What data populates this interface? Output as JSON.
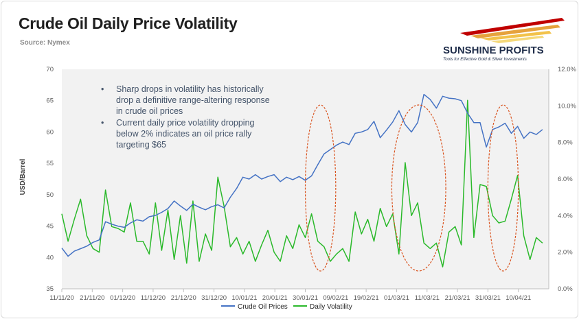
{
  "header": {
    "title": "Crude Oil Daily Price Volatility",
    "source": "Source: Nymex"
  },
  "logo": {
    "name": "SUNSHINE PROFITS",
    "tagline": "Tools for Effective Gold & Silver Investments"
  },
  "annotations": [
    [
      "Sharp drops in volatility has historically",
      "drop a definitive range-altering response",
      "in crude oil prices"
    ],
    [
      "Current daily price volatility dropping",
      "below 2% indicates an oil price rally",
      "targeting $65"
    ]
  ],
  "colors": {
    "price": "#4472c4",
    "volatility": "#2ab92a",
    "highlight_ellipse": "#d9531e",
    "plot_background": "#f2f2f2"
  },
  "chart_data": {
    "type": "line",
    "title": "Crude Oil Daily Price Volatility",
    "subtitle": "Source: Nymex",
    "ylabel_left": "USD/Barrel",
    "ylim_left": [
      35,
      70
    ],
    "yticks_left": [
      "35",
      "40",
      "45",
      "50",
      "55",
      "60",
      "65",
      "70"
    ],
    "ylim_right": [
      0,
      12
    ],
    "yticks_right": [
      "0.0%",
      "2.0%",
      "4.0%",
      "6.0%",
      "8.0%",
      "10.0%",
      "12.0%"
    ],
    "x_tick_labels": [
      "11/11/20",
      "21/11/20",
      "01/12/20",
      "11/12/20",
      "21/12/20",
      "31/12/20",
      "10/01/21",
      "20/01/21",
      "30/01/21",
      "09/02/21",
      "19/02/21",
      "01/03/21",
      "11/03/21",
      "21/03/21",
      "31/03/21",
      "10/04/21"
    ],
    "x_range_days": [
      0,
      156
    ],
    "legend": [
      "Crude Oil Prices",
      "Daily Volatility"
    ],
    "legend_position": "bottom",
    "grid": false,
    "series": [
      {
        "name": "Crude Oil Prices",
        "axis": "left",
        "x_days": [
          0,
          2,
          4,
          6,
          8,
          10,
          12,
          14,
          16,
          18,
          20,
          22,
          24,
          26,
          28,
          30,
          32,
          34,
          36,
          38,
          40,
          42,
          44,
          46,
          48,
          50,
          52,
          54,
          56,
          58,
          60,
          62,
          64,
          66,
          68,
          70,
          72,
          74,
          76,
          78,
          80,
          82,
          84,
          86,
          88,
          90,
          92,
          94,
          96,
          98,
          100,
          102,
          104,
          106,
          108,
          110,
          112,
          114,
          116,
          118,
          120,
          122,
          124,
          126,
          128,
          130,
          132,
          134,
          136,
          138,
          140,
          142,
          144,
          146,
          148,
          150,
          152,
          154
        ],
        "values": [
          41.5,
          40.2,
          41.0,
          41.4,
          41.8,
          42.4,
          42.8,
          45.7,
          45.3,
          45.0,
          44.8,
          45.5,
          46.0,
          45.8,
          46.5,
          46.7,
          47.2,
          47.8,
          49.0,
          48.2,
          47.5,
          48.5,
          48.0,
          47.6,
          48.1,
          48.4,
          47.9,
          49.6,
          51.0,
          52.8,
          52.5,
          53.2,
          52.5,
          52.9,
          53.2,
          52.1,
          52.8,
          52.4,
          52.9,
          52.3,
          53.0,
          54.8,
          56.5,
          57.2,
          57.9,
          58.4,
          58.0,
          59.8,
          60.0,
          60.4,
          61.7,
          59.1,
          60.3,
          61.6,
          63.4,
          61.2,
          60.0,
          61.5,
          66.0,
          65.2,
          63.8,
          65.7,
          65.4,
          65.3,
          65.0,
          63.0,
          61.5,
          61.5,
          57.6,
          60.4,
          60.8,
          61.4,
          59.8,
          60.9,
          59.0,
          60.0,
          59.6,
          60.4
        ]
      },
      {
        "name": "Daily Volatility",
        "axis": "right",
        "x_days": [
          0,
          2,
          4,
          6,
          8,
          10,
          12,
          14,
          16,
          18,
          20,
          22,
          24,
          26,
          28,
          30,
          32,
          34,
          36,
          38,
          40,
          42,
          44,
          46,
          48,
          50,
          52,
          54,
          56,
          58,
          60,
          62,
          64,
          66,
          68,
          70,
          72,
          74,
          76,
          78,
          80,
          82,
          84,
          86,
          88,
          90,
          92,
          94,
          96,
          98,
          100,
          102,
          104,
          106,
          108,
          110,
          112,
          114,
          116,
          118,
          120,
          122,
          124,
          126,
          128,
          130,
          132,
          134,
          136,
          138,
          140,
          142,
          144,
          146,
          148,
          150,
          152,
          154
        ],
        "values": [
          4.1,
          2.6,
          3.8,
          4.9,
          2.9,
          2.2,
          2.0,
          5.4,
          3.4,
          3.3,
          3.1,
          4.7,
          2.6,
          2.6,
          1.9,
          4.7,
          2.1,
          4.3,
          1.6,
          4.0,
          1.4,
          4.8,
          1.5,
          3.0,
          2.1,
          6.1,
          4.5,
          2.3,
          2.8,
          1.9,
          2.6,
          1.5,
          2.4,
          3.2,
          2.0,
          1.5,
          2.9,
          2.2,
          3.5,
          2.8,
          4.1,
          2.6,
          2.3,
          1.5,
          1.9,
          2.2,
          1.5,
          4.2,
          3.0,
          3.8,
          2.6,
          4.4,
          3.4,
          4.1,
          1.9,
          6.9,
          4.0,
          4.7,
          2.5,
          2.2,
          2.5,
          1.2,
          3.1,
          3.4,
          2.4,
          10.3,
          2.8,
          5.7,
          5.6,
          4.0,
          3.6,
          3.7,
          4.9,
          6.2,
          2.9,
          1.6,
          2.8,
          2.5
        ]
      }
    ],
    "highlight_ellipses_date_spans": [
      [
        "30/01/21",
        "09/02/21"
      ],
      [
        "01/03/21",
        "21/03/21"
      ],
      [
        "31/03/21",
        "10/04/21"
      ]
    ]
  }
}
